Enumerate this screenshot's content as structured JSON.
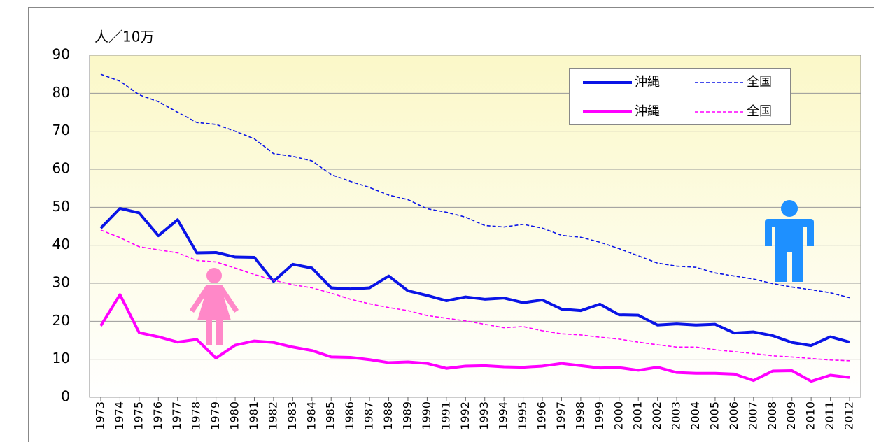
{
  "chart_data": {
    "type": "line",
    "y_label": "人／10万",
    "categories": [
      "1973",
      "1974",
      "1975",
      "1976",
      "1977",
      "1978",
      "1979",
      "1980",
      "1981",
      "1982",
      "1983",
      "1984",
      "1985",
      "1986",
      "1987",
      "1988",
      "1989",
      "1990",
      "1991",
      "1992",
      "1993",
      "1994",
      "1995",
      "1996",
      "1997",
      "1998",
      "1999",
      "2000",
      "2001",
      "2002",
      "2003",
      "2004",
      "2005",
      "2006",
      "2007",
      "2008",
      "2009",
      "2010",
      "2011",
      "2012"
    ],
    "ylim": [
      0,
      90
    ],
    "yticks": [
      0,
      10,
      20,
      30,
      40,
      50,
      60,
      70,
      80,
      90
    ],
    "grid": true,
    "series": [
      {
        "name": "沖縄",
        "color": "#0a14e6",
        "dash": false,
        "values": [
          44.5,
          49.7,
          48.5,
          42.5,
          46.7,
          38,
          38.1,
          36.9,
          36.8,
          30.5,
          35,
          34,
          28.8,
          28.5,
          28.8,
          31.9,
          28,
          26.8,
          25.4,
          26.4,
          25.8,
          26.1,
          24.9,
          25.6,
          23.2,
          22.8,
          24.5,
          21.7,
          21.6,
          19,
          19.3,
          19,
          19.2,
          16.9,
          17.2,
          16.2,
          14.4,
          13.6,
          15.9,
          14.5
        ]
      },
      {
        "name": "全国",
        "color": "#0a14e6",
        "dash": true,
        "values": [
          85,
          83.2,
          79.6,
          77.8,
          75,
          72.3,
          71.8,
          70,
          68,
          64.1,
          63.4,
          62.2,
          58.6,
          56.8,
          55.2,
          53.2,
          52,
          49.6,
          48.7,
          47.4,
          45.2,
          44.8,
          45.5,
          44.5,
          42.6,
          42.1,
          40.8,
          39.1,
          37.2,
          35.3,
          34.5,
          34.2,
          32.7,
          31.9,
          31.1,
          29.9,
          29,
          28.3,
          27.5,
          26.2
        ]
      },
      {
        "name": "沖縄",
        "color": "#ff00ff",
        "dash": false,
        "values": [
          18.8,
          27,
          17,
          15.9,
          14.5,
          15.2,
          10.3,
          13.7,
          14.8,
          14.4,
          13.2,
          12.3,
          10.6,
          10.5,
          9.9,
          9.1,
          9.3,
          8.9,
          7.6,
          8.2,
          8.3,
          8,
          7.9,
          8.2,
          8.9,
          8.3,
          7.7,
          7.8,
          7.1,
          7.9,
          6.5,
          6.3,
          6.3,
          6.1,
          4.4,
          6.9,
          7,
          4.2,
          5.8,
          5.2
        ]
      },
      {
        "name": "全国",
        "color": "#ff00ff",
        "dash": true,
        "values": [
          44,
          42,
          39.6,
          38.8,
          38,
          36,
          35.6,
          34,
          32.3,
          30.8,
          29.6,
          28.8,
          27.4,
          25.8,
          24.6,
          23.6,
          22.8,
          21.5,
          20.8,
          20.1,
          19.2,
          18.3,
          18.6,
          17.5,
          16.7,
          16.4,
          15.8,
          15.3,
          14.5,
          13.8,
          13.2,
          13.2,
          12.5,
          12,
          11.5,
          10.9,
          10.6,
          10.2,
          9.8,
          9.6
        ]
      }
    ]
  }
}
